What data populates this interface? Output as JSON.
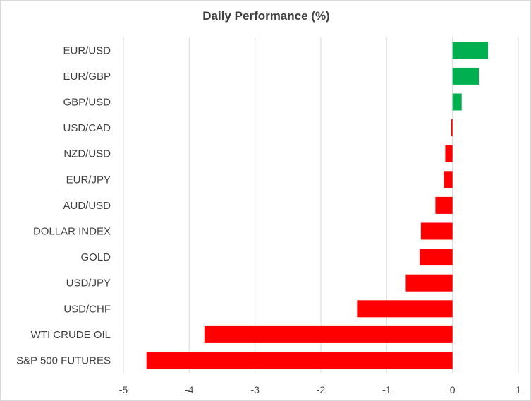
{
  "chart_data": {
    "type": "bar",
    "orientation": "horizontal",
    "title": "Daily Performance (%)",
    "xlabel": "",
    "ylabel": "",
    "xlim": [
      -5,
      1
    ],
    "xticks": [
      -5,
      -4,
      -3,
      -2,
      -1,
      0,
      1
    ],
    "grid": "vertical major gridlines on",
    "legend": "none",
    "categories": [
      "EUR/USD",
      "EUR/GBP",
      "GBP/USD",
      "USD/CAD",
      "NZD/USD",
      "EUR/JPY",
      "AUD/USD",
      "DOLLAR INDEX",
      "GOLD",
      "USD/JPY",
      "USD/CHF",
      "WTI CRUDE OIL",
      "S&P 500 FUTURES"
    ],
    "values": [
      0.54,
      0.4,
      0.14,
      -0.02,
      -0.11,
      -0.13,
      -0.26,
      -0.48,
      -0.5,
      -0.71,
      -1.45,
      -3.77,
      -4.65
    ],
    "colors": {
      "positive": "#00b050",
      "negative": "#ff0000",
      "gridline": "#d9d9d9",
      "text": "#404040"
    }
  }
}
